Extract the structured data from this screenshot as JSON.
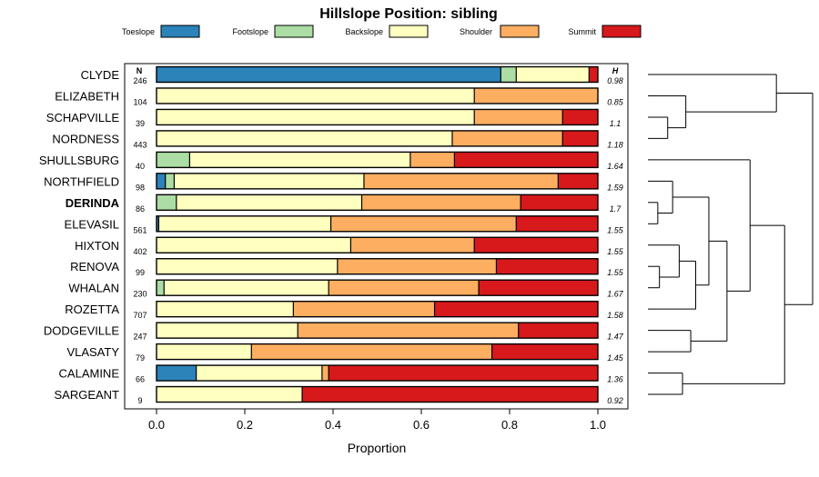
{
  "chart_data": {
    "type": "bar",
    "stacked": true,
    "orientation": "horizontal",
    "title": "Hillslope Position: sibling",
    "xlabel": "Proportion",
    "xlim": [
      -0.07,
      1.07
    ],
    "xticks": [
      0.0,
      0.2,
      0.4,
      0.6,
      0.8,
      1.0
    ],
    "xtick_labels": [
      "0.0",
      "0.2",
      "0.4",
      "0.6",
      "0.8",
      "1.0"
    ],
    "n_header": "N",
    "h_header": "H",
    "legend": [
      {
        "name": "Toeslope",
        "color": "#2b83ba"
      },
      {
        "name": "Footslope",
        "color": "#abdda4"
      },
      {
        "name": "Backslope",
        "color": "#ffffbf"
      },
      {
        "name": "Shoulder",
        "color": "#fdae61"
      },
      {
        "name": "Summit",
        "color": "#d7191c"
      }
    ],
    "rows": [
      {
        "label": "CLYDE",
        "bold": false,
        "n": "246",
        "h": "0.98",
        "values": [
          0.78,
          0.035,
          0.165,
          0.0,
          0.02
        ]
      },
      {
        "label": "ELIZABETH",
        "bold": false,
        "n": "104",
        "h": "0.85",
        "values": [
          0.0,
          0.0,
          0.72,
          0.28,
          0.0
        ]
      },
      {
        "label": "SCHAPVILLE",
        "bold": false,
        "n": "39",
        "h": "1.1",
        "values": [
          0.0,
          0.0,
          0.72,
          0.2,
          0.08
        ]
      },
      {
        "label": "NORDNESS",
        "bold": false,
        "n": "443",
        "h": "1.18",
        "values": [
          0.0,
          0.0,
          0.67,
          0.25,
          0.08
        ]
      },
      {
        "label": "SHULLSBURG",
        "bold": false,
        "n": "40",
        "h": "1.64",
        "values": [
          0.0,
          0.075,
          0.5,
          0.1,
          0.325
        ]
      },
      {
        "label": "NORTHFIELD",
        "bold": false,
        "n": "98",
        "h": "1.59",
        "values": [
          0.02,
          0.02,
          0.43,
          0.44,
          0.09
        ]
      },
      {
        "label": "DERINDA",
        "bold": true,
        "n": "86",
        "h": "1.7",
        "values": [
          0.0,
          0.045,
          0.42,
          0.36,
          0.175
        ]
      },
      {
        "label": "ELEVASIL",
        "bold": false,
        "n": "561",
        "h": "1.55",
        "values": [
          0.005,
          0.0,
          0.39,
          0.42,
          0.185
        ]
      },
      {
        "label": "HIXTON",
        "bold": false,
        "n": "402",
        "h": "1.55",
        "values": [
          0.0,
          0.0,
          0.44,
          0.28,
          0.28
        ]
      },
      {
        "label": "RENOVA",
        "bold": false,
        "n": "99",
        "h": "1.55",
        "values": [
          0.0,
          0.0,
          0.41,
          0.36,
          0.23
        ]
      },
      {
        "label": "WHALAN",
        "bold": false,
        "n": "230",
        "h": "1.67",
        "values": [
          0.0,
          0.017,
          0.373,
          0.34,
          0.27
        ]
      },
      {
        "label": "ROZETTA",
        "bold": false,
        "n": "707",
        "h": "1.58",
        "values": [
          0.0,
          0.0,
          0.31,
          0.32,
          0.37
        ]
      },
      {
        "label": "DODGEVILLE",
        "bold": false,
        "n": "247",
        "h": "1.47",
        "values": [
          0.0,
          0.0,
          0.32,
          0.5,
          0.18
        ]
      },
      {
        "label": "VLASATY",
        "bold": false,
        "n": "79",
        "h": "1.45",
        "values": [
          0.0,
          0.0,
          0.215,
          0.545,
          0.24
        ]
      },
      {
        "label": "CALAMINE",
        "bold": false,
        "n": "66",
        "h": "1.36",
        "values": [
          0.09,
          0.0,
          0.285,
          0.015,
          0.61
        ]
      },
      {
        "label": "SARGEANT",
        "bold": false,
        "n": "9",
        "h": "0.92",
        "values": [
          0.0,
          0.0,
          0.33,
          0.0,
          0.67
        ]
      }
    ],
    "dendrogram": {
      "merges": [
        {
          "id": "c1",
          "left": "L2",
          "right": "L3",
          "height": 0.12
        },
        {
          "id": "c2",
          "left": "L1",
          "right": "c1",
          "height": 0.23
        },
        {
          "id": "c3",
          "left": "L0",
          "right": "c2",
          "height": 0.78
        },
        {
          "id": "c4",
          "left": "L6",
          "right": "L7",
          "height": 0.06
        },
        {
          "id": "c5",
          "left": "L5",
          "right": "c4",
          "height": 0.15
        },
        {
          "id": "c6",
          "left": "L9",
          "right": "L10",
          "height": 0.07
        },
        {
          "id": "c7",
          "left": "L8",
          "right": "c6",
          "height": 0.19
        },
        {
          "id": "c8",
          "left": "c7",
          "right": "L11",
          "height": 0.29
        },
        {
          "id": "c9",
          "left": "c5",
          "right": "c8",
          "height": 0.37
        },
        {
          "id": "c10",
          "left": "L12",
          "right": "L13",
          "height": 0.26
        },
        {
          "id": "c11",
          "left": "c9",
          "right": "c10",
          "height": 0.48
        },
        {
          "id": "c12",
          "left": "L4",
          "right": "c11",
          "height": 0.62
        },
        {
          "id": "c13",
          "left": "L14",
          "right": "L15",
          "height": 0.21
        },
        {
          "id": "c14",
          "left": "c12",
          "right": "c13",
          "height": 0.83
        },
        {
          "id": "c15",
          "left": "c3",
          "right": "c14",
          "height": 1.0
        }
      ]
    }
  }
}
